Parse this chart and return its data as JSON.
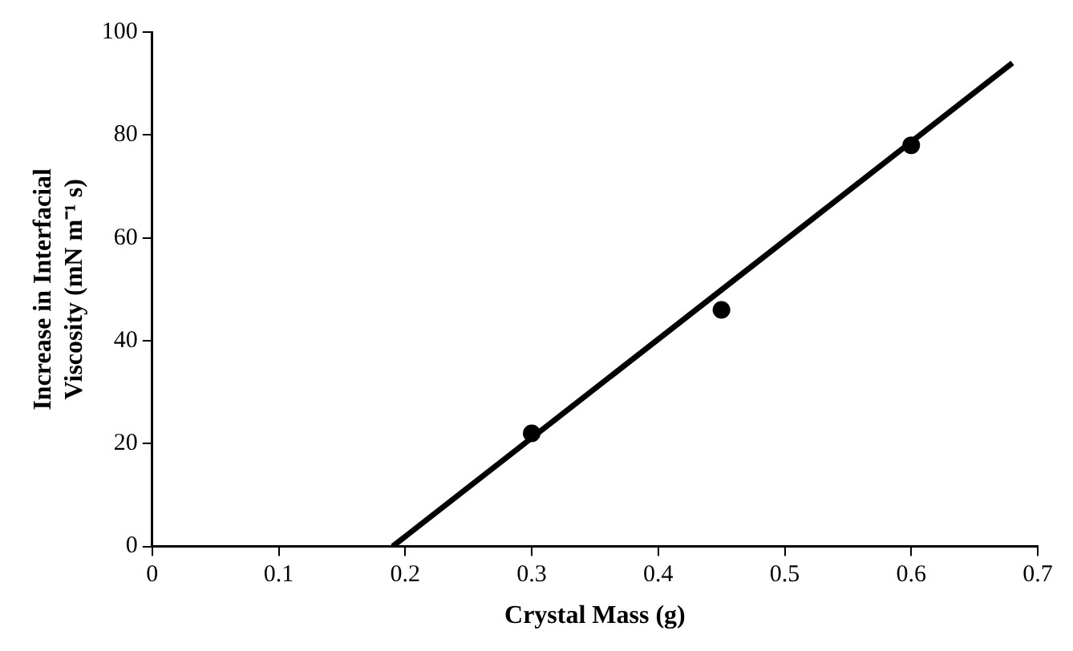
{
  "chart_data": {
    "type": "scatter",
    "xlabel": "Crystal Mass (g)",
    "ylabel": "Increase in Interfacial Viscosity (mN m⁻¹ s)",
    "xlim": [
      0,
      0.7
    ],
    "xticks": [
      0,
      0.1,
      0.2,
      0.3,
      0.4,
      0.5,
      0.6,
      0.7
    ],
    "ylim": [
      0,
      100
    ],
    "yticks": [
      0,
      20,
      40,
      60,
      80,
      100
    ],
    "grid": false,
    "legend": false,
    "series": [
      {
        "marker": "circle",
        "color": "#000000",
        "x": [
          0.3,
          0.45,
          0.6
        ],
        "values": [
          22,
          46,
          78
        ]
      },
      {
        "type": "line",
        "color": "#000000",
        "line_style": "solid",
        "x": [
          0.19,
          0.68
        ],
        "values": [
          0,
          94
        ]
      }
    ]
  }
}
